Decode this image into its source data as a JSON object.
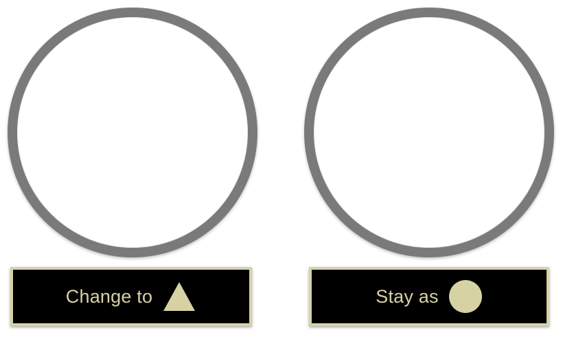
{
  "options": [
    {
      "label": "Change to",
      "shape_icon": "triangle-icon"
    },
    {
      "label": "Stay as",
      "shape_icon": "circle-icon"
    }
  ],
  "colors": {
    "ring": "#7a7a7a",
    "button_background": "#000000",
    "button_accent": "#d6d2a4",
    "page_background": "#ffffff"
  }
}
